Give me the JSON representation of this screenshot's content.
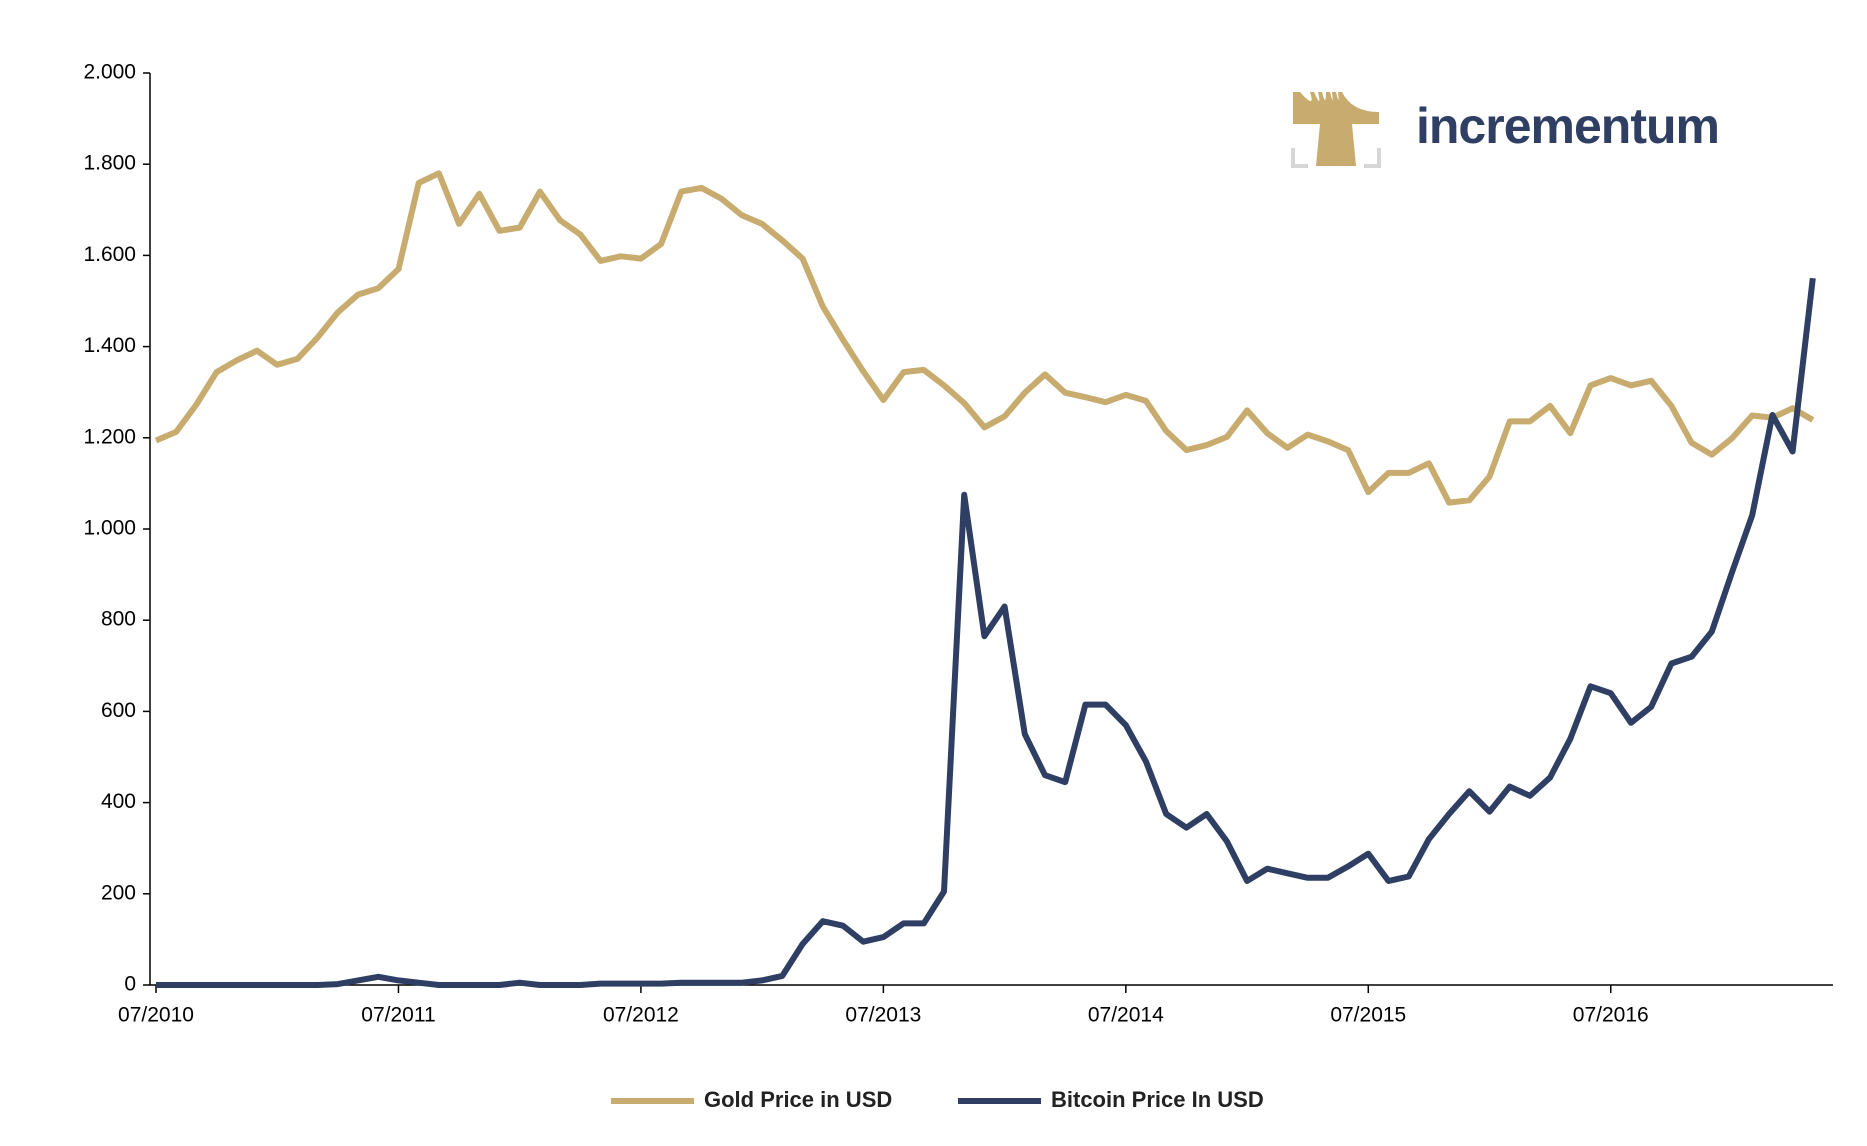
{
  "chart_data": {
    "type": "line",
    "x": [
      "07/2010",
      "08/2010",
      "09/2010",
      "10/2010",
      "11/2010",
      "12/2010",
      "01/2011",
      "02/2011",
      "03/2011",
      "04/2011",
      "05/2011",
      "06/2011",
      "07/2011",
      "08/2011",
      "09/2011",
      "10/2011",
      "11/2011",
      "12/2011",
      "01/2012",
      "02/2012",
      "03/2012",
      "04/2012",
      "05/2012",
      "06/2012",
      "07/2012",
      "08/2012",
      "09/2012",
      "10/2012",
      "11/2012",
      "12/2012",
      "01/2013",
      "02/2013",
      "03/2013",
      "04/2013",
      "05/2013",
      "06/2013",
      "07/2013",
      "08/2013",
      "09/2013",
      "10/2013",
      "11/2013",
      "12/2013",
      "01/2014",
      "02/2014",
      "03/2014",
      "04/2014",
      "05/2014",
      "06/2014",
      "07/2014",
      "08/2014",
      "09/2014",
      "10/2014",
      "11/2014",
      "12/2014",
      "01/2015",
      "02/2015",
      "03/2015",
      "04/2015",
      "05/2015",
      "06/2015",
      "07/2015",
      "08/2015",
      "09/2015",
      "10/2015",
      "11/2015",
      "12/2015",
      "01/2016",
      "02/2016",
      "03/2016",
      "04/2016",
      "05/2016",
      "06/2016",
      "07/2016",
      "08/2016",
      "09/2016",
      "10/2016",
      "11/2016",
      "12/2016",
      "01/2017",
      "02/2017",
      "03/2017",
      "04/2017",
      "05/2017"
    ],
    "series": [
      {
        "name": "Gold Price in USD",
        "color": "#c8ab6e",
        "values": [
          1194,
          1213,
          1273,
          1344,
          1370,
          1391,
          1360,
          1373,
          1420,
          1475,
          1514,
          1528,
          1570,
          1759,
          1780,
          1669,
          1735,
          1654,
          1661,
          1740,
          1677,
          1646,
          1588,
          1598,
          1593,
          1625,
          1740,
          1748,
          1724,
          1688,
          1669,
          1633,
          1593,
          1488,
          1415,
          1346,
          1283,
          1344,
          1349,
          1315,
          1276,
          1223,
          1247,
          1299,
          1339,
          1299,
          1289,
          1278,
          1294,
          1281,
          1215,
          1173,
          1184,
          1202,
          1260,
          1210,
          1178,
          1207,
          1192,
          1173,
          1081,
          1123,
          1123,
          1144,
          1058,
          1063,
          1115,
          1236,
          1236,
          1270,
          1210,
          1315,
          1331,
          1315,
          1325,
          1270,
          1189,
          1163,
          1199,
          1249,
          1244,
          1265,
          1239
        ]
      },
      {
        "name": "Bitcoin Price In USD",
        "color": "#2e3f63",
        "values": [
          0,
          0,
          0,
          0,
          0,
          0,
          0,
          0,
          0,
          2,
          10,
          18,
          10,
          5,
          0,
          0,
          0,
          0,
          5,
          0,
          0,
          0,
          3,
          3,
          3,
          3,
          5,
          5,
          5,
          5,
          10,
          20,
          90,
          140,
          130,
          95,
          105,
          135,
          135,
          205,
          1075,
          765,
          830,
          550,
          460,
          445,
          615,
          615,
          570,
          490,
          375,
          345,
          375,
          315,
          228,
          255,
          245,
          235,
          235,
          260,
          288,
          228,
          238,
          320,
          375,
          425,
          380,
          435,
          415,
          455,
          540,
          655,
          640,
          575,
          610,
          705,
          720,
          775,
          905,
          1030,
          1250,
          1170,
          1550
        ]
      }
    ],
    "xlim": [
      "07/2010",
      "06/2017"
    ],
    "xticks": [
      "07/2010",
      "07/2011",
      "07/2012",
      "07/2013",
      "07/2014",
      "07/2015",
      "07/2016"
    ],
    "ylim": [
      0,
      2000
    ],
    "yticks": [
      0,
      200,
      400,
      600,
      800,
      {
        "value": 1000,
        "label": "1.000"
      },
      {
        "value": 1200,
        "label": "1.200"
      },
      {
        "value": 1400,
        "label": "1.400"
      },
      {
        "value": 1600,
        "label": "1.600"
      },
      {
        "value": 1800,
        "label": "1.800"
      },
      {
        "value": 2000,
        "label": "2.000"
      }
    ],
    "grid": false,
    "legend": "bottom"
  },
  "logo": {
    "text": "incrementum"
  }
}
